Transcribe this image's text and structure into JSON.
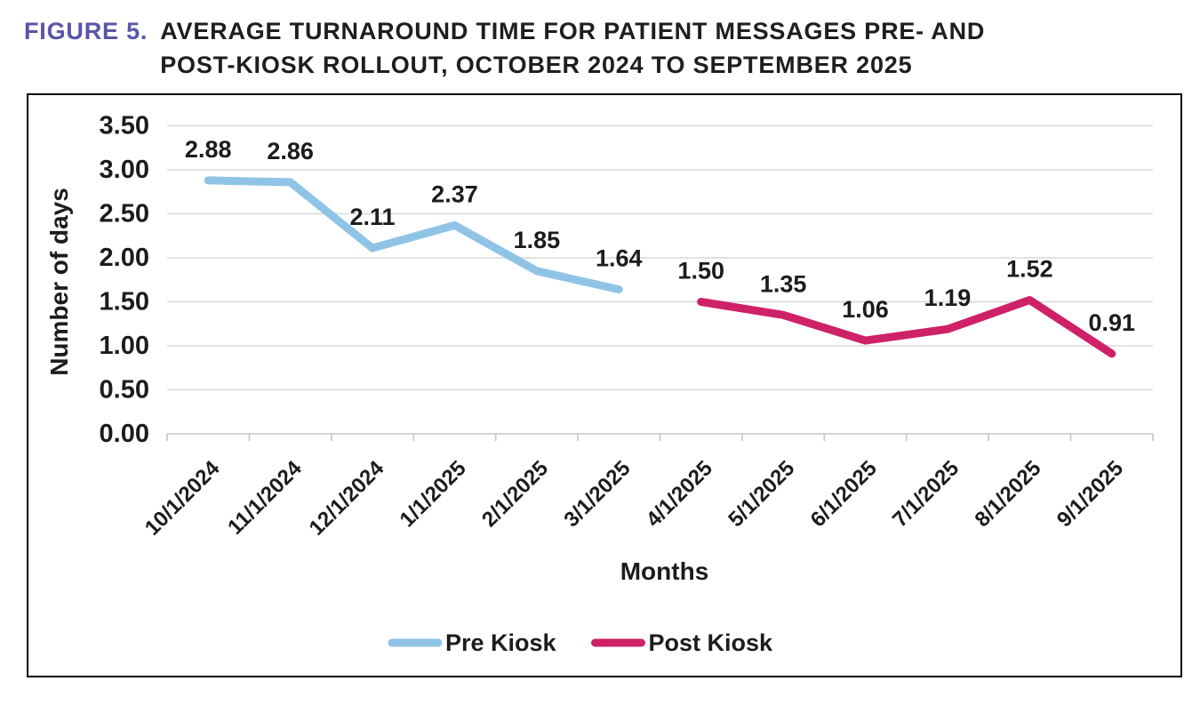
{
  "figure": {
    "label": "FIGURE 5.",
    "label_color": "#5a55a6",
    "title_line1": "AVERAGE TURNAROUND TIME FOR PATIENT MESSAGES PRE- AND",
    "title_line2": "POST-KIOSK ROLLOUT, OCTOBER 2024 TO SEPTEMBER 2025"
  },
  "chart_data": {
    "type": "line",
    "title": "FIGURE 5. Average turnaround time for patient messages pre- and post-kiosk rollout, October 2024 to September 2025",
    "categories": [
      "10/1/2024",
      "11/1/2024",
      "12/1/2024",
      "1/1/2025",
      "2/1/2025",
      "3/1/2025",
      "4/1/2025",
      "5/1/2025",
      "6/1/2025",
      "7/1/2025",
      "8/1/2025",
      "9/1/2025"
    ],
    "series": [
      {
        "name": "Pre Kiosk",
        "color": "#90c4e7",
        "values": [
          2.88,
          2.86,
          2.11,
          2.37,
          1.85,
          1.64,
          null,
          null,
          null,
          null,
          null,
          null
        ]
      },
      {
        "name": "Post Kiosk",
        "color": "#ce2168",
        "values": [
          null,
          null,
          null,
          null,
          null,
          null,
          1.5,
          1.35,
          1.06,
          1.19,
          1.52,
          0.91
        ]
      }
    ],
    "xlabel": "Months",
    "ylabel": "Number of days",
    "ylim": [
      0,
      3.5
    ],
    "ytick_step": 0.5,
    "ytick_decimals": 2,
    "value_label_decimals": 2,
    "grid": true,
    "legend_position": "bottom",
    "gridline_color": "#d8d8d8",
    "axis_color": "#c6c6c6",
    "text_color": "#1c1c1c"
  }
}
